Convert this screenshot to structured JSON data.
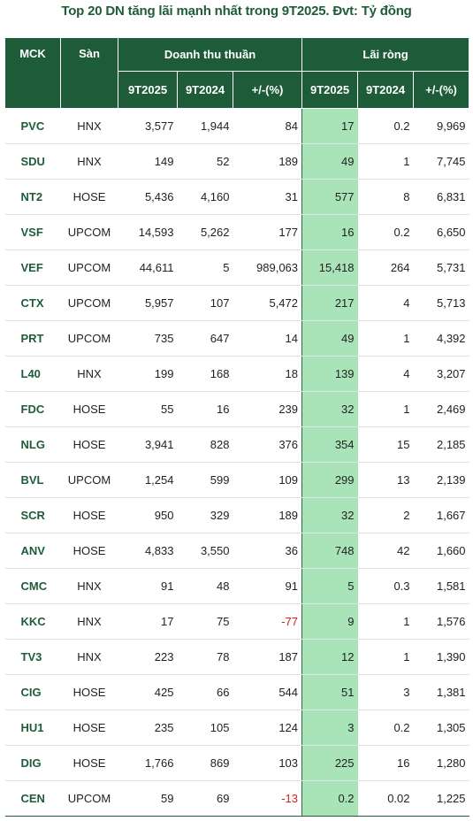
{
  "title": "Top 20 DN tăng lãi mạnh nhất trong 9T2025. Đvt: Tỷ đồng",
  "headers": {
    "mck": "MCK",
    "san": "Sàn",
    "doanh_thu": "Doanh thu thuần",
    "lai_rong": "Lãi ròng",
    "sub": [
      "9T2025",
      "9T2024",
      "+/-(%)",
      "9T2025",
      "9T2024",
      "+/-(%)"
    ]
  },
  "colors": {
    "header_bg": "#1e5b38",
    "highlight": "#a8e4b8",
    "negative": "#d02020"
  },
  "rows": [
    {
      "mck": "PVC",
      "san": "HNX",
      "dt25": "3,577",
      "dt24": "1,944",
      "dtpct": "84",
      "lr25": "17",
      "lr24": "0.2",
      "lrpct": "9,969"
    },
    {
      "mck": "SDU",
      "san": "HNX",
      "dt25": "149",
      "dt24": "52",
      "dtpct": "189",
      "lr25": "49",
      "lr24": "1",
      "lrpct": "7,745"
    },
    {
      "mck": "NT2",
      "san": "HOSE",
      "dt25": "5,436",
      "dt24": "4,160",
      "dtpct": "31",
      "lr25": "577",
      "lr24": "8",
      "lrpct": "6,831"
    },
    {
      "mck": "VSF",
      "san": "UPCOM",
      "dt25": "14,593",
      "dt24": "5,262",
      "dtpct": "177",
      "lr25": "16",
      "lr24": "0.2",
      "lrpct": "6,650"
    },
    {
      "mck": "VEF",
      "san": "UPCOM",
      "dt25": "44,611",
      "dt24": "5",
      "dtpct": "989,063",
      "lr25": "15,418",
      "lr24": "264",
      "lrpct": "5,731"
    },
    {
      "mck": "CTX",
      "san": "UPCOM",
      "dt25": "5,957",
      "dt24": "107",
      "dtpct": "5,472",
      "lr25": "217",
      "lr24": "4",
      "lrpct": "5,713"
    },
    {
      "mck": "PRT",
      "san": "UPCOM",
      "dt25": "735",
      "dt24": "647",
      "dtpct": "14",
      "lr25": "49",
      "lr24": "1",
      "lrpct": "4,392"
    },
    {
      "mck": "L40",
      "san": "HNX",
      "dt25": "199",
      "dt24": "168",
      "dtpct": "18",
      "lr25": "139",
      "lr24": "4",
      "lrpct": "3,207"
    },
    {
      "mck": "FDC",
      "san": "HOSE",
      "dt25": "55",
      "dt24": "16",
      "dtpct": "239",
      "lr25": "32",
      "lr24": "1",
      "lrpct": "2,469"
    },
    {
      "mck": "NLG",
      "san": "HOSE",
      "dt25": "3,941",
      "dt24": "828",
      "dtpct": "376",
      "lr25": "354",
      "lr24": "15",
      "lrpct": "2,185"
    },
    {
      "mck": "BVL",
      "san": "UPCOM",
      "dt25": "1,254",
      "dt24": "599",
      "dtpct": "109",
      "lr25": "299",
      "lr24": "13",
      "lrpct": "2,139"
    },
    {
      "mck": "SCR",
      "san": "HOSE",
      "dt25": "950",
      "dt24": "329",
      "dtpct": "189",
      "lr25": "32",
      "lr24": "2",
      "lrpct": "1,667"
    },
    {
      "mck": "ANV",
      "san": "HOSE",
      "dt25": "4,833",
      "dt24": "3,550",
      "dtpct": "36",
      "lr25": "748",
      "lr24": "42",
      "lrpct": "1,660"
    },
    {
      "mck": "CMC",
      "san": "HNX",
      "dt25": "91",
      "dt24": "48",
      "dtpct": "91",
      "lr25": "5",
      "lr24": "0.3",
      "lrpct": "1,581"
    },
    {
      "mck": "KKC",
      "san": "HNX",
      "dt25": "17",
      "dt24": "75",
      "dtpct": "-77",
      "lr25": "9",
      "lr24": "1",
      "lrpct": "1,576"
    },
    {
      "mck": "TV3",
      "san": "HNX",
      "dt25": "223",
      "dt24": "78",
      "dtpct": "187",
      "lr25": "12",
      "lr24": "1",
      "lrpct": "1,390"
    },
    {
      "mck": "CIG",
      "san": "HOSE",
      "dt25": "425",
      "dt24": "66",
      "dtpct": "544",
      "lr25": "51",
      "lr24": "3",
      "lrpct": "1,381"
    },
    {
      "mck": "HU1",
      "san": "HOSE",
      "dt25": "235",
      "dt24": "105",
      "dtpct": "124",
      "lr25": "3",
      "lr24": "0.2",
      "lrpct": "1,305"
    },
    {
      "mck": "DIG",
      "san": "HOSE",
      "dt25": "1,766",
      "dt24": "869",
      "dtpct": "103",
      "lr25": "225",
      "lr24": "16",
      "lrpct": "1,280"
    },
    {
      "mck": "CEN",
      "san": "UPCOM",
      "dt25": "59",
      "dt24": "69",
      "dtpct": "-13",
      "lr25": "0.2",
      "lr24": "0.02",
      "lrpct": "1,225"
    }
  ]
}
